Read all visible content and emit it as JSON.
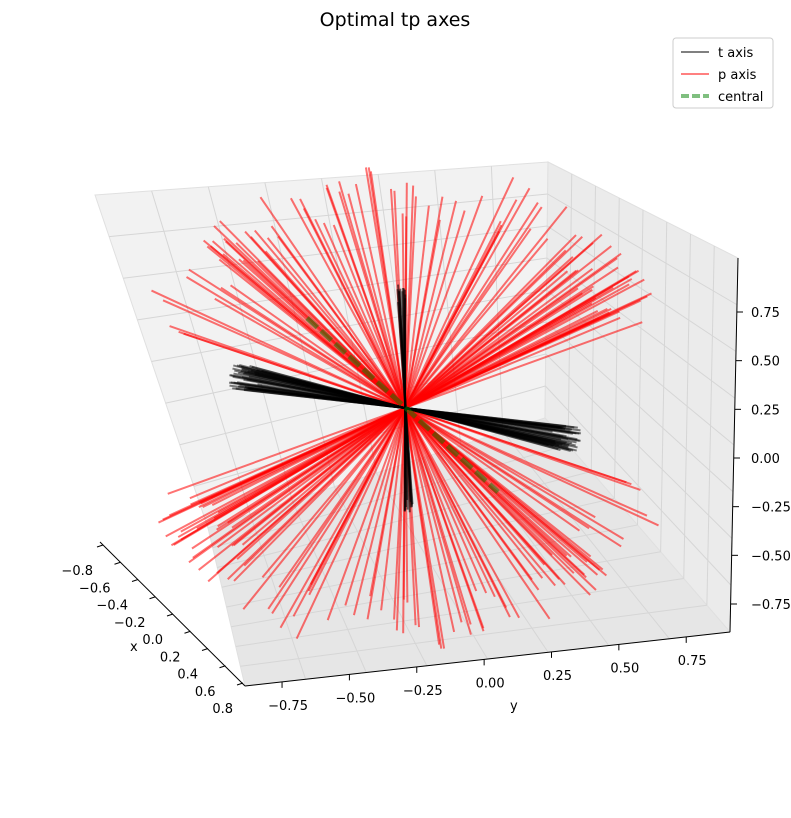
{
  "chart_data": {
    "type": "line",
    "title": "Optimal tp axes",
    "xlabel": "x",
    "ylabel": "y",
    "zlabel": "",
    "projection": "3d",
    "xlim": [
      -0.8,
      0.8
    ],
    "ylim": [
      -0.9,
      0.9
    ],
    "zlim": [
      -0.9,
      0.9
    ],
    "x_ticks": [
      "−0.8",
      "−0.6",
      "−0.4",
      "−0.2",
      "0.0",
      "0.2",
      "0.4",
      "0.6",
      "0.8"
    ],
    "y_ticks": [
      "−0.75",
      "−0.50",
      "−0.25",
      "0.00",
      "0.25",
      "0.50",
      "0.75"
    ],
    "z_ticks": [
      "−0.75",
      "−0.50",
      "−0.25",
      "0.00",
      "0.25",
      "0.50",
      "0.75"
    ],
    "grid": true,
    "legend_position": "top-right",
    "series": [
      {
        "name": "t axis",
        "color": "#000000",
        "alpha": 0.5,
        "style": "solid",
        "description": "roughly horizontal axis lines through the origin, clustered along the y direction"
      },
      {
        "name": "p axis",
        "color": "#ff0000",
        "alpha": 0.55,
        "style": "solid",
        "description": "lines through the origin spread in a fan, mostly steep in z"
      },
      {
        "name": "central",
        "color": "#008000",
        "alpha": 0.5,
        "style": "dashed",
        "segments": [
          [
            [
              -0.66,
              -0.2,
              0.55
            ],
            [
              0.66,
              0.2,
              -0.55
            ]
          ]
        ]
      }
    ]
  },
  "legend": {
    "items": [
      {
        "label": "t axis",
        "color": "#808080"
      },
      {
        "label": "p axis",
        "color": "#ff8080"
      },
      {
        "label": "central",
        "color": "#7fbf7f"
      }
    ]
  }
}
